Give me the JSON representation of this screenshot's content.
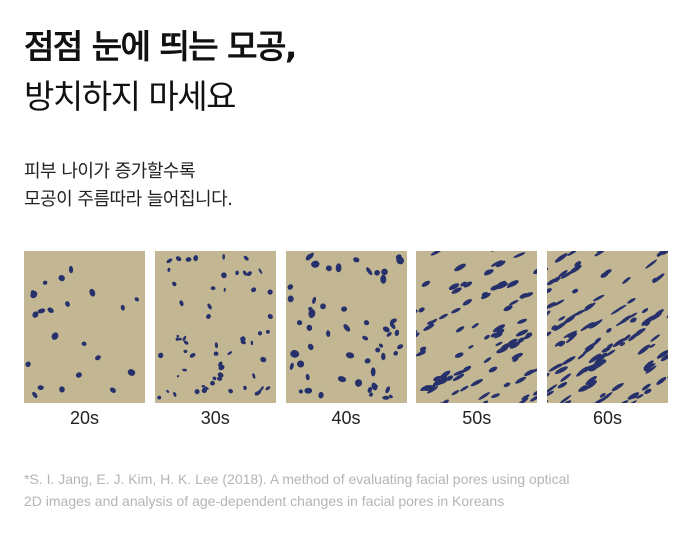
{
  "title": {
    "line1": "점점 눈에 띄는 모공,",
    "line2": "방치하지 마세요"
  },
  "description": {
    "line1": "피부 나이가 증가할수록",
    "line2": "모공이 주름따라 늘어집니다."
  },
  "panels": [
    {
      "label": "20s",
      "pattern": "sparse-dots"
    },
    {
      "label": "30s",
      "pattern": "scattered-pores"
    },
    {
      "label": "40s",
      "pattern": "denser-pores"
    },
    {
      "label": "50s",
      "pattern": "diagonal-streaks"
    },
    {
      "label": "60s",
      "pattern": "dense-diagonal-streaks"
    }
  ],
  "colors": {
    "skin": "#c2b693",
    "pore": "#26306b"
  },
  "reference": {
    "line1": "*S. I. Jang,  E. J. Kim, H. K. Lee (2018). A method of evaluating facial pores using optical",
    "line2": "2D images and analysis of age-dependent changes in facial pores in Koreans"
  }
}
